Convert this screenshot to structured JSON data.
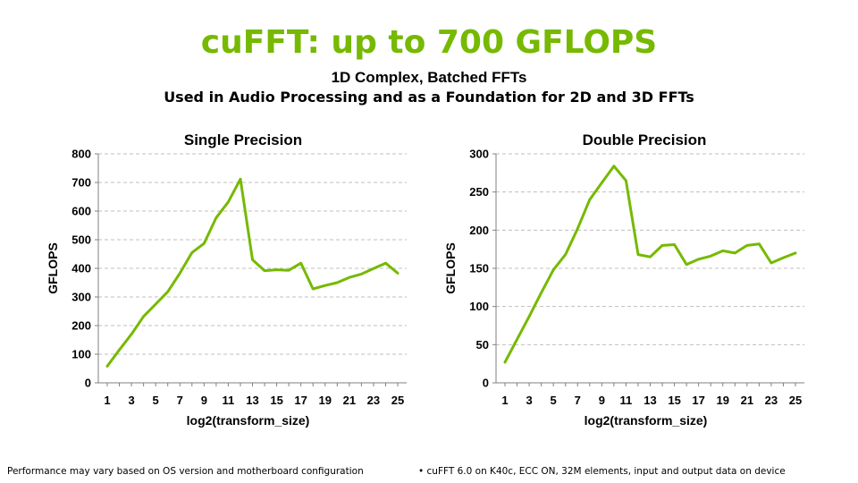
{
  "header": {
    "title": "cuFFT: up to 700 GFLOPS",
    "subtitle_line1": "1D Complex, Batched FFTs",
    "subtitle_line2": "Used in Audio Processing and as a Foundation for 2D and 3D FFTs"
  },
  "footer": {
    "left": "Performance may vary based on OS version and motherboard configuration",
    "right": "• cuFFT 6.0 on K40c, ECC ON, 32M elements, input and output data on device"
  },
  "colors": {
    "accent": "#76b900",
    "grid": "#bfbfbf",
    "axis": "#808080"
  },
  "chart_data": [
    {
      "type": "line",
      "title": "Single Precision",
      "xlabel": "log2(transform_size)",
      "ylabel": "GFLOPS",
      "x_ticks": [
        "1",
        "3",
        "5",
        "7",
        "9",
        "11",
        "13",
        "15",
        "17",
        "19",
        "21",
        "23",
        "25"
      ],
      "y_ticks": [
        "0",
        "100",
        "200",
        "300",
        "400",
        "500",
        "600",
        "700",
        "800"
      ],
      "xlim": [
        1,
        25
      ],
      "ylim": [
        0,
        800
      ],
      "grid": true,
      "series": [
        {
          "x": [
            1,
            2,
            3,
            4,
            5,
            6,
            7,
            8,
            9,
            10,
            11,
            12,
            13,
            14,
            15,
            16,
            17,
            18,
            19,
            20,
            21,
            22,
            23,
            24,
            25
          ],
          "values": [
            58,
            115,
            170,
            232,
            275,
            318,
            383,
            455,
            487,
            577,
            632,
            712,
            430,
            392,
            395,
            393,
            418,
            328,
            340,
            350,
            368,
            380,
            399,
            418,
            383
          ]
        }
      ]
    },
    {
      "type": "line",
      "title": "Double Precision",
      "xlabel": "log2(transform_size)",
      "ylabel": "GFLOPS",
      "x_ticks": [
        "1",
        "3",
        "5",
        "7",
        "9",
        "11",
        "13",
        "15",
        "17",
        "19",
        "21",
        "23",
        "25"
      ],
      "y_ticks": [
        "0",
        "50",
        "100",
        "150",
        "200",
        "250",
        "300"
      ],
      "xlim": [
        1,
        25
      ],
      "ylim": [
        0,
        300
      ],
      "grid": true,
      "series": [
        {
          "x": [
            1,
            2,
            3,
            4,
            5,
            6,
            7,
            8,
            9,
            10,
            11,
            12,
            13,
            14,
            15,
            16,
            17,
            18,
            19,
            20,
            21,
            22,
            23,
            24,
            25
          ],
          "values": [
            27,
            57,
            87,
            118,
            148,
            168,
            202,
            240,
            262,
            284,
            265,
            168,
            165,
            180,
            181,
            155,
            162,
            166,
            173,
            170,
            180,
            182,
            157,
            164,
            170
          ]
        }
      ]
    }
  ]
}
